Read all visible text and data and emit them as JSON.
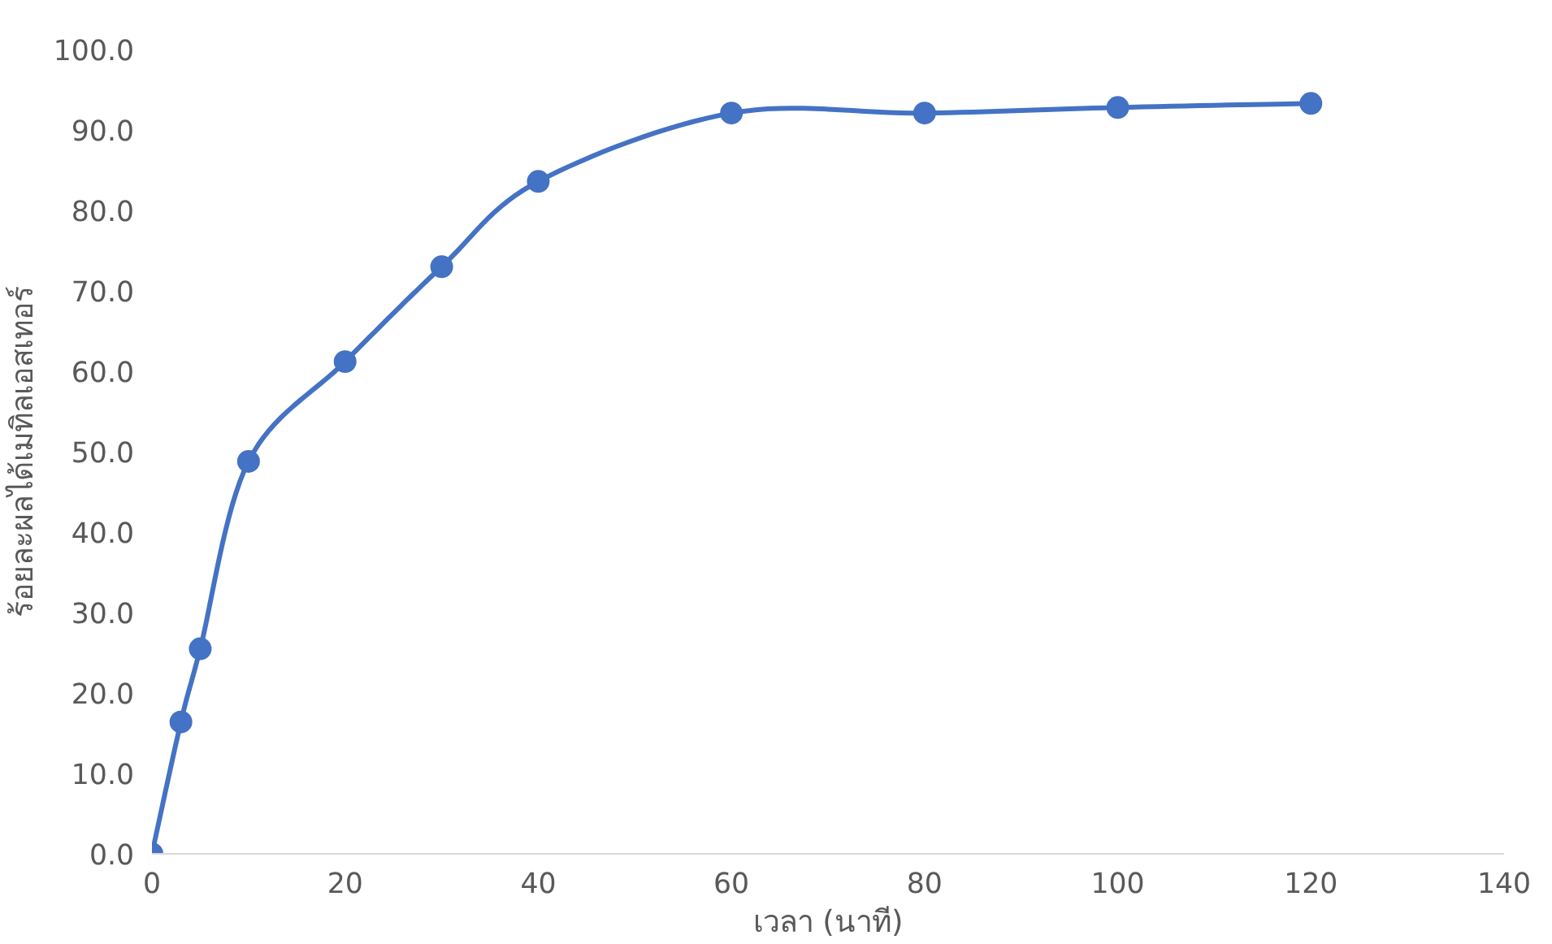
{
  "chart_data": {
    "type": "line",
    "xlabel": "เวลา (นาที)",
    "ylabel": "ร้อยละผลได้เมทิลเอสเทอร์",
    "x": [
      0,
      3,
      5,
      10,
      20,
      30,
      40,
      60,
      80,
      100,
      120
    ],
    "series": [
      {
        "color": "#4472c4",
        "values": [
          0,
          16.4,
          25.5,
          48.8,
          61.2,
          73.0,
          83.6,
          92.1,
          92.1,
          92.8,
          93.3
        ]
      }
    ],
    "xlim": [
      0,
      140
    ],
    "xticks": [
      0,
      20,
      40,
      60,
      80,
      100,
      120,
      140
    ],
    "ylim": [
      0,
      100
    ],
    "yticks": [
      {
        "value": 0,
        "label": "0.0"
      },
      {
        "value": 10,
        "label": "10.0"
      },
      {
        "value": 20,
        "label": "20.0"
      },
      {
        "value": 30,
        "label": "30.0"
      },
      {
        "value": 40,
        "label": "40.0"
      },
      {
        "value": 50,
        "label": "50.0"
      },
      {
        "value": 60,
        "label": "60.0"
      },
      {
        "value": 70,
        "label": "70.0"
      },
      {
        "value": 80,
        "label": "80.0"
      },
      {
        "value": 90,
        "label": "90.0"
      },
      {
        "value": 100,
        "label": "100.0"
      }
    ],
    "grid": false,
    "marker": "circle",
    "line_style": "solid"
  }
}
